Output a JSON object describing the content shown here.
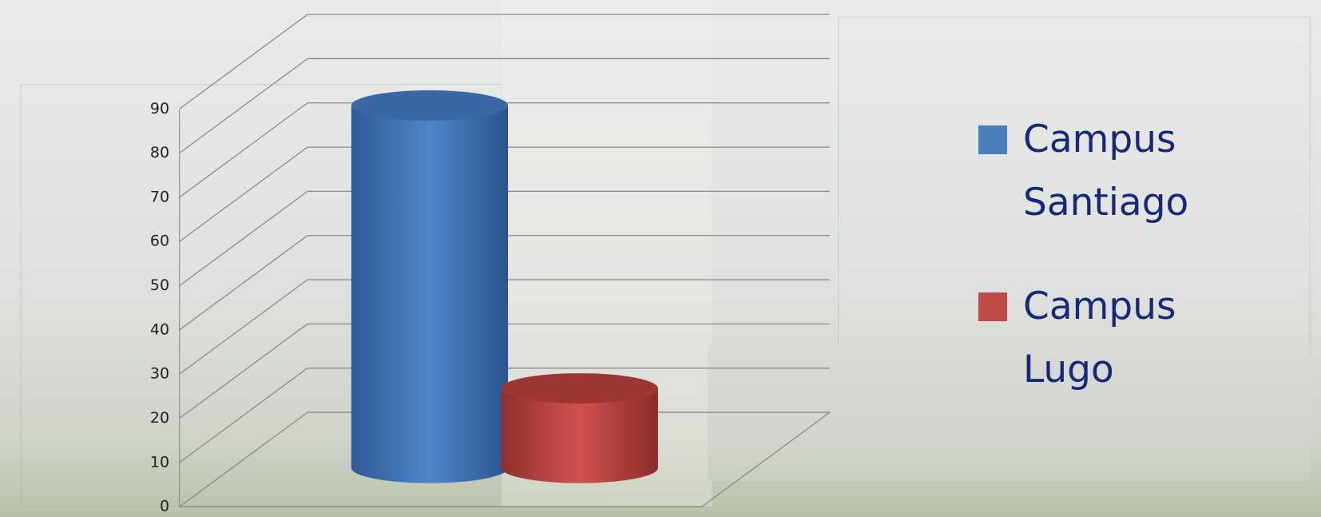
{
  "chart_data": {
    "type": "bar3d",
    "series": [
      {
        "name": "Campus Santiago",
        "color": "#4a7ebb",
        "values": [
          82
        ]
      },
      {
        "name": "Campus Lugo",
        "color": "#be4b48",
        "values": [
          18
        ]
      }
    ],
    "ylim": [
      0,
      90
    ],
    "yticks": [
      0,
      10,
      20,
      30,
      40,
      50,
      60,
      70,
      80,
      90
    ],
    "grid": true,
    "legend": "right"
  }
}
